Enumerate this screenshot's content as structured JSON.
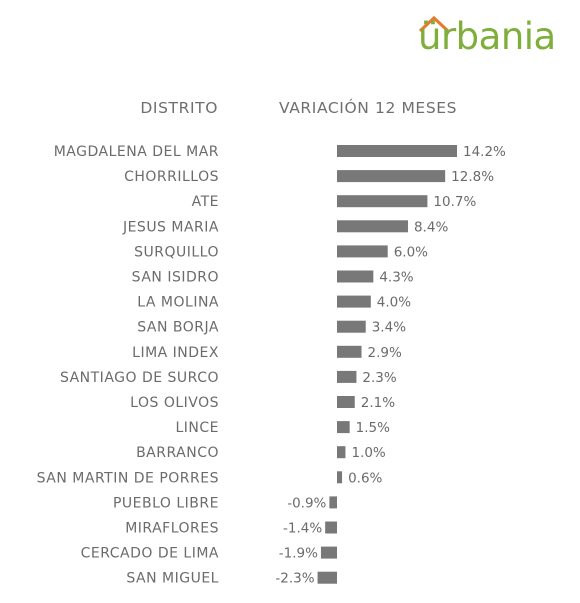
{
  "logo": {
    "text": "ürbania",
    "color": "#7fae3a"
  },
  "header": {
    "distrito_label": "DISTRITO",
    "variacion_label": "VARIACIÓN 12 MESES"
  },
  "chart_data": {
    "type": "bar",
    "orientation": "horizontal",
    "title": "",
    "xlabel": "",
    "ylabel": "",
    "bar_color": "#787878",
    "categories": [
      "MAGDALENA DEL MAR",
      "CHORRILLOS",
      "ATE",
      "JESUS MARIA",
      "SURQUILLO",
      "SAN ISIDRO",
      "LA MOLINA",
      "SAN BORJA",
      "LIMA INDEX",
      "SANTIAGO DE SURCO",
      "LOS OLIVOS",
      "LINCE",
      "BARRANCO",
      "SAN MARTIN DE PORRES",
      "PUEBLO LIBRE",
      "MIRAFLORES",
      "CERCADO DE LIMA",
      "SAN MIGUEL"
    ],
    "values": [
      14.2,
      12.8,
      10.7,
      8.4,
      6.0,
      4.3,
      4.0,
      3.4,
      2.9,
      2.3,
      2.1,
      1.5,
      1.0,
      0.6,
      -0.9,
      -1.4,
      -1.9,
      -2.3
    ],
    "value_labels": [
      "14.2%",
      "12.8%",
      "10.7%",
      "8.4%",
      "6.0%",
      "4.3%",
      "4.0%",
      "3.4%",
      "2.9%",
      "2.3%",
      "2.1%",
      "1.5%",
      "1.0%",
      "0.6%",
      "-0.9%",
      "-1.4%",
      "-1.9%",
      "-2.3%"
    ],
    "unit": "%"
  }
}
